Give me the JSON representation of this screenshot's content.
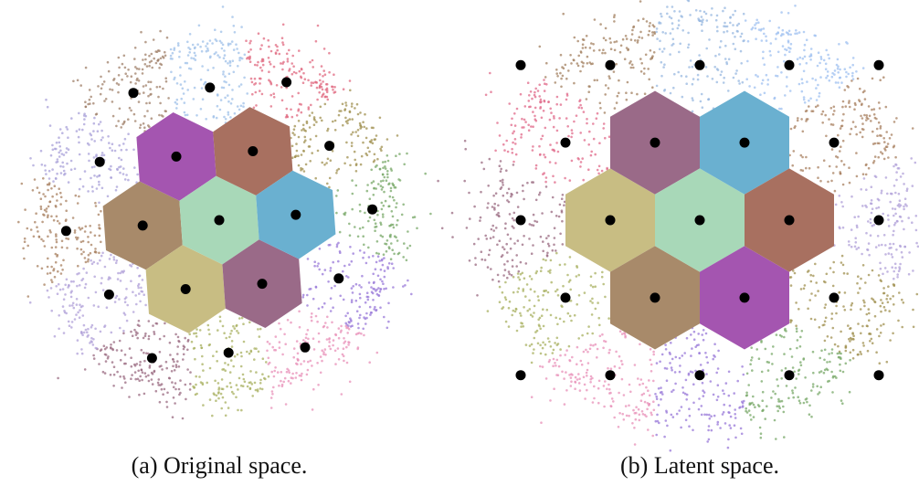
{
  "panels": [
    {
      "caption": "(a) Original space."
    },
    {
      "caption": "(b) Latent space."
    }
  ]
}
